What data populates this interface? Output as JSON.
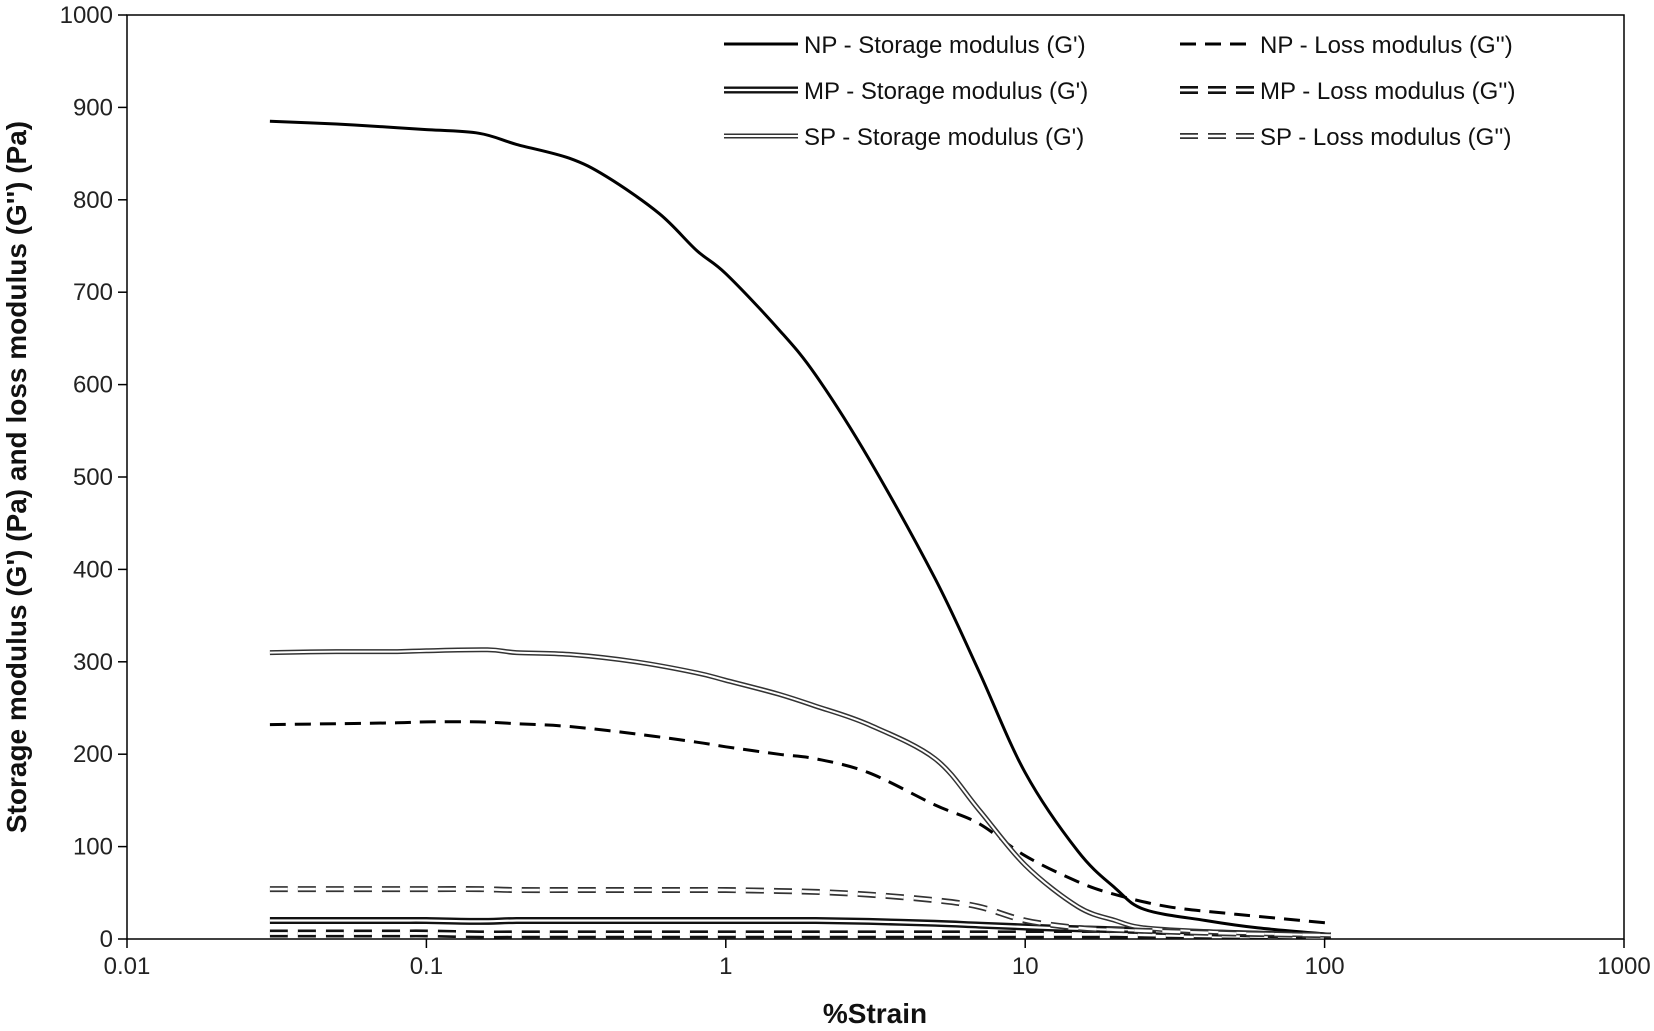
{
  "chart_data": {
    "type": "line",
    "title": "",
    "xlabel": "%Strain",
    "ylabel": "Storage modulus (G') (Pa) and loss modulus (G'') (Pa)",
    "xscale": "log",
    "xlim": [
      0.01,
      1000
    ],
    "ylim": [
      0,
      1000
    ],
    "x_ticks": [
      0.01,
      0.1,
      1,
      10,
      100,
      1000
    ],
    "x_tick_labels": [
      "0.01",
      "0.1",
      "1",
      "10",
      "100",
      "1000"
    ],
    "y_ticks": [
      0,
      100,
      200,
      300,
      400,
      500,
      600,
      700,
      800,
      900,
      1000
    ],
    "y_tick_labels": [
      "0",
      "100",
      "200",
      "300",
      "400",
      "500",
      "600",
      "700",
      "800",
      "900",
      "1000"
    ],
    "grid": false,
    "legend_position": "top-right",
    "series": [
      {
        "name": "NP - Storage modulus (G')",
        "style": "solid-black",
        "x": [
          0.03,
          0.05,
          0.08,
          0.1,
          0.15,
          0.2,
          0.3,
          0.4,
          0.6,
          0.8,
          1,
          1.5,
          2,
          3,
          5,
          7,
          10,
          15,
          20,
          25,
          40,
          60,
          105
        ],
        "y": [
          885,
          882,
          878,
          876,
          872,
          860,
          845,
          825,
          785,
          745,
          720,
          660,
          610,
          520,
          390,
          290,
          180,
          95,
          55,
          32,
          20,
          12,
          5
        ]
      },
      {
        "name": "NP - Loss modulus (G'')",
        "style": "dashed-black",
        "x": [
          0.03,
          0.05,
          0.08,
          0.1,
          0.15,
          0.2,
          0.3,
          0.5,
          0.8,
          1,
          1.5,
          2,
          3,
          5,
          7,
          10,
          15,
          20,
          30,
          50,
          105
        ],
        "y": [
          232,
          233,
          234,
          235,
          235,
          233,
          230,
          222,
          213,
          208,
          200,
          195,
          180,
          145,
          125,
          90,
          62,
          48,
          35,
          27,
          17
        ]
      },
      {
        "name": "MP - Storage modulus (G')",
        "style": "double-line",
        "x": [
          0.03,
          0.05,
          0.08,
          0.1,
          0.15,
          0.2,
          0.3,
          0.5,
          0.8,
          1,
          1.5,
          2,
          3,
          5,
          7,
          10,
          15,
          20,
          30,
          50,
          105
        ],
        "y": [
          20,
          20,
          20,
          20,
          19,
          20,
          20,
          20,
          20,
          20,
          20,
          20,
          19,
          17,
          15,
          13,
          11,
          10,
          8,
          6,
          3
        ]
      },
      {
        "name": "MP - Loss modulus (G'')",
        "style": "double-dashed",
        "x": [
          0.03,
          0.05,
          0.08,
          0.1,
          0.15,
          0.2,
          0.3,
          0.5,
          0.8,
          1,
          1.5,
          2,
          3,
          5,
          7,
          10,
          15,
          20,
          30,
          50,
          105
        ],
        "y": [
          6,
          6,
          6,
          6,
          5,
          5,
          5,
          5,
          5,
          5,
          5,
          5,
          5,
          5,
          5,
          5,
          5,
          5,
          4,
          3,
          2
        ]
      },
      {
        "name": "SP - Storage modulus (G')",
        "style": "hollow-line",
        "x": [
          0.03,
          0.05,
          0.08,
          0.1,
          0.16,
          0.2,
          0.3,
          0.5,
          0.8,
          1,
          1.5,
          2,
          3,
          5,
          7,
          10,
          15,
          20,
          25,
          40,
          60,
          105
        ],
        "y": [
          310,
          311,
          311,
          312,
          313,
          310,
          308,
          300,
          288,
          280,
          265,
          252,
          232,
          195,
          140,
          80,
          35,
          20,
          12,
          8,
          6,
          4
        ]
      },
      {
        "name": "SP - Loss modulus (G'')",
        "style": "hollow-dashed",
        "x": [
          0.03,
          0.05,
          0.08,
          0.1,
          0.15,
          0.2,
          0.3,
          0.5,
          0.8,
          1,
          1.5,
          2,
          3,
          5,
          7,
          10,
          15,
          20,
          30,
          50,
          105
        ],
        "y": [
          54,
          54,
          54,
          54,
          54,
          53,
          53,
          53,
          53,
          53,
          52,
          51,
          48,
          42,
          35,
          20,
          12,
          10,
          8,
          6,
          4
        ]
      }
    ]
  }
}
